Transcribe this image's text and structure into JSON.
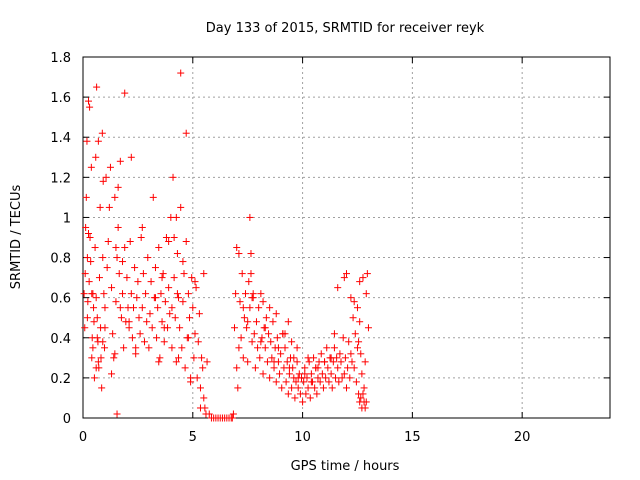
{
  "chart_data": {
    "type": "scatter",
    "title": "Day 133 of 2015, SRMTID for receiver reyk",
    "xlabel": "GPS time / hours",
    "ylabel": "SRMTID / TECUs",
    "xlim": [
      0,
      24
    ],
    "ylim": [
      0,
      1.8
    ],
    "xticks": [
      0,
      5,
      10,
      15,
      20
    ],
    "xtick_labels": [
      "0",
      "5",
      "10",
      "15",
      "20"
    ],
    "yticks": [
      0,
      0.2,
      0.4,
      0.6,
      0.8,
      1,
      1.2,
      1.4,
      1.6,
      1.8
    ],
    "ytick_labels": [
      "0",
      "0.2",
      "0.4",
      "0.6",
      "0.8",
      "1",
      "1.2",
      "1.4",
      "1.6",
      "1.8"
    ],
    "grid": true,
    "marker": "+",
    "color": "#ff0000",
    "series": [
      {
        "name": "SRMTID",
        "x": [
          0.05,
          0.08,
          0.1,
          0.12,
          0.15,
          0.18,
          0.2,
          0.22,
          0.25,
          0.28,
          0.3,
          0.32,
          0.35,
          0.38,
          0.4,
          0.42,
          0.45,
          0.48,
          0.5,
          0.52,
          0.55,
          0.58,
          0.6,
          0.62,
          0.65,
          0.68,
          0.7,
          0.72,
          0.75,
          0.78,
          0.8,
          0.82,
          0.85,
          0.88,
          0.9,
          0.92,
          0.95,
          0.98,
          1.0,
          1.05,
          1.1,
          1.15,
          1.2,
          1.25,
          1.3,
          1.35,
          1.4,
          1.45,
          1.5,
          1.55,
          1.6,
          1.65,
          1.7,
          1.75,
          1.8,
          1.85,
          1.9,
          1.95,
          2.0,
          2.05,
          2.1,
          2.15,
          2.2,
          2.25,
          2.3,
          2.35,
          2.4,
          2.45,
          2.5,
          2.55,
          2.6,
          2.65,
          2.7,
          2.75,
          2.8,
          2.85,
          2.9,
          2.95,
          3.0,
          3.05,
          3.1,
          3.15,
          3.2,
          3.25,
          3.3,
          3.35,
          3.4,
          3.45,
          3.5,
          3.55,
          3.6,
          3.65,
          3.7,
          3.75,
          3.8,
          3.85,
          3.9,
          3.95,
          4.0,
          4.05,
          4.1,
          4.15,
          4.2,
          4.25,
          4.3,
          4.35,
          4.4,
          4.45,
          4.5,
          4.55,
          4.6,
          4.65,
          4.7,
          4.75,
          4.8,
          4.85,
          4.9,
          4.95,
          5.0,
          5.05,
          5.1,
          5.15,
          5.2,
          5.25,
          5.3,
          5.35,
          5.4,
          5.45,
          5.5,
          5.55,
          5.6,
          0.2,
          0.25,
          0.4,
          0.45,
          0.6,
          0.65,
          0.9,
          1.0,
          1.3,
          1.5,
          1.55,
          1.7,
          1.8,
          2.1,
          2.4,
          2.7,
          3.3,
          3.45,
          3.6,
          3.7,
          4.05,
          4.15,
          4.3,
          4.35,
          4.55,
          4.8,
          4.9,
          5.1,
          1.45,
          1.6,
          0.7,
          1.9,
          2.2,
          3.9,
          4.25,
          4.45,
          4.7,
          5.35,
          5.5,
          5.65,
          5.75,
          5.85,
          5.95,
          6.05,
          6.15,
          6.25,
          6.35,
          6.45,
          6.55,
          6.65,
          6.75,
          6.8,
          6.85,
          6.9,
          6.95,
          7.0,
          7.05,
          7.1,
          7.15,
          7.2,
          7.25,
          7.3,
          7.35,
          7.4,
          7.45,
          7.5,
          7.55,
          7.6,
          7.65,
          7.7,
          7.75,
          7.8,
          7.85,
          7.9,
          7.95,
          8.0,
          8.05,
          8.1,
          8.15,
          8.2,
          8.25,
          8.3,
          8.35,
          8.4,
          8.45,
          8.5,
          8.55,
          8.6,
          8.65,
          8.7,
          8.75,
          8.8,
          8.85,
          8.9,
          8.95,
          9.0,
          9.05,
          9.1,
          9.15,
          9.2,
          9.25,
          9.3,
          9.35,
          9.4,
          9.45,
          9.5,
          9.55,
          9.6,
          9.65,
          9.7,
          9.75,
          9.8,
          9.85,
          9.9,
          9.95,
          10.0,
          10.05,
          10.1,
          10.15,
          10.2,
          10.25,
          10.3,
          10.35,
          10.4,
          10.45,
          10.5,
          10.55,
          10.6,
          10.65,
          10.7,
          10.75,
          10.8,
          10.85,
          10.9,
          10.95,
          11.0,
          11.05,
          11.1,
          11.15,
          11.2,
          11.25,
          11.3,
          11.35,
          11.4,
          11.45,
          11.5,
          11.55,
          11.6,
          11.65,
          11.7,
          11.75,
          11.8,
          11.85,
          11.9,
          11.95,
          12.0,
          12.05,
          12.1,
          12.15,
          12.2,
          12.25,
          12.3,
          12.35,
          12.4,
          12.45,
          12.5,
          12.55,
          12.6,
          12.65,
          12.7,
          12.75,
          12.8,
          12.85,
          12.9,
          12.95,
          13.0,
          7.1,
          7.3,
          7.5,
          7.65,
          7.75,
          8.1,
          8.3,
          8.5,
          8.7,
          8.9,
          9.1,
          9.4,
          9.6,
          9.8,
          10.1,
          10.4,
          10.7,
          11.0,
          11.3,
          11.6,
          11.9,
          12.2,
          12.5,
          12.55,
          12.6,
          12.65,
          12.7,
          12.75,
          7.0,
          7.6,
          7.7,
          8.2,
          8.8,
          9.2,
          9.35,
          9.5,
          9.75,
          10.25,
          10.6,
          11.45,
          12.0,
          12.35,
          12.6,
          12.8,
          12.85,
          12.9
        ],
        "y": [
          0.62,
          0.45,
          0.72,
          0.95,
          1.1,
          1.38,
          0.8,
          0.58,
          1.58,
          0.68,
          1.55,
          0.9,
          0.78,
          1.25,
          0.62,
          0.4,
          0.35,
          0.55,
          0.48,
          0.2,
          0.85,
          1.3,
          0.6,
          1.65,
          0.5,
          0.38,
          1.38,
          0.25,
          0.7,
          1.05,
          0.45,
          0.3,
          0.15,
          1.42,
          0.8,
          1.18,
          0.62,
          0.35,
          0.55,
          1.2,
          0.75,
          0.88,
          1.05,
          1.25,
          0.65,
          0.42,
          0.3,
          1.1,
          0.58,
          0.8,
          0.95,
          0.72,
          1.28,
          0.5,
          0.62,
          0.35,
          0.85,
          0.48,
          0.7,
          0.55,
          0.45,
          0.88,
          0.62,
          0.4,
          0.55,
          0.75,
          0.32,
          0.6,
          0.68,
          0.5,
          0.42,
          0.9,
          0.55,
          0.72,
          0.38,
          0.62,
          0.48,
          0.8,
          0.35,
          0.52,
          0.68,
          0.45,
          1.1,
          0.6,
          0.75,
          0.4,
          0.55,
          0.85,
          0.3,
          0.62,
          0.48,
          0.72,
          0.38,
          0.58,
          0.9,
          0.45,
          0.65,
          0.52,
          1.0,
          0.35,
          1.2,
          0.7,
          0.5,
          0.28,
          0.82,
          0.6,
          0.45,
          1.05,
          0.35,
          0.58,
          0.72,
          0.25,
          0.88,
          0.4,
          0.62,
          0.5,
          0.18,
          0.7,
          0.55,
          0.3,
          0.42,
          0.65,
          0.2,
          0.38,
          0.52,
          0.15,
          0.3,
          0.25,
          0.1,
          0.05,
          0.02,
          0.5,
          0.92,
          0.3,
          0.62,
          0.25,
          0.4,
          0.38,
          0.45,
          0.22,
          0.85,
          0.02,
          0.55,
          0.78,
          0.48,
          0.35,
          0.95,
          0.6,
          0.28,
          0.7,
          0.45,
          0.55,
          0.9,
          0.62,
          0.3,
          0.78,
          0.4,
          0.2,
          0.68,
          0.32,
          1.15,
          0.28,
          1.62,
          1.3,
          0.88,
          1.0,
          1.72,
          1.42,
          0.05,
          0.72,
          0.28,
          0.02,
          0.0,
          0.0,
          0.0,
          0.0,
          0.0,
          0.0,
          0.0,
          0.0,
          0.0,
          0.0,
          0.0,
          0.02,
          0.45,
          0.62,
          0.25,
          0.15,
          0.35,
          0.58,
          0.4,
          0.72,
          0.3,
          0.5,
          0.62,
          0.45,
          0.28,
          0.68,
          0.55,
          0.82,
          0.38,
          0.6,
          0.42,
          0.25,
          0.48,
          0.35,
          0.55,
          0.3,
          0.62,
          0.4,
          0.22,
          0.45,
          0.35,
          0.5,
          0.28,
          0.42,
          0.2,
          0.38,
          0.3,
          0.48,
          0.25,
          0.35,
          0.18,
          0.4,
          0.28,
          0.22,
          0.32,
          0.15,
          0.42,
          0.25,
          0.35,
          0.18,
          0.28,
          0.12,
          0.22,
          0.3,
          0.15,
          0.25,
          0.2,
          0.1,
          0.18,
          0.28,
          0.15,
          0.22,
          0.12,
          0.2,
          0.08,
          0.18,
          0.25,
          0.12,
          0.2,
          0.15,
          0.28,
          0.1,
          0.22,
          0.18,
          0.3,
          0.15,
          0.25,
          0.12,
          0.2,
          0.28,
          0.18,
          0.32,
          0.22,
          0.15,
          0.28,
          0.2,
          0.35,
          0.25,
          0.18,
          0.3,
          0.22,
          0.15,
          0.28,
          0.35,
          0.2,
          0.3,
          0.25,
          0.18,
          0.32,
          0.28,
          0.2,
          0.4,
          0.22,
          0.3,
          0.15,
          0.25,
          0.38,
          0.2,
          0.32,
          0.28,
          0.5,
          0.25,
          0.42,
          0.18,
          0.35,
          0.12,
          0.08,
          0.1,
          0.05,
          0.12,
          0.08,
          0.28,
          0.62,
          0.72,
          0.45,
          0.82,
          0.55,
          0.48,
          0.72,
          0.62,
          0.38,
          0.45,
          0.55,
          0.28,
          0.35,
          0.42,
          0.25,
          0.3,
          0.2,
          0.22,
          0.18,
          0.25,
          0.28,
          0.3,
          0.65,
          0.7,
          0.6,
          0.55,
          0.38,
          0.48,
          0.32,
          0.22,
          0.7,
          0.85,
          1.0,
          0.6,
          0.58,
          0.52,
          0.42,
          0.48,
          0.38,
          0.35,
          0.3,
          0.25,
          0.42,
          0.72,
          0.58,
          0.68,
          0.15,
          0.05,
          0.08
        ]
      }
    ]
  }
}
